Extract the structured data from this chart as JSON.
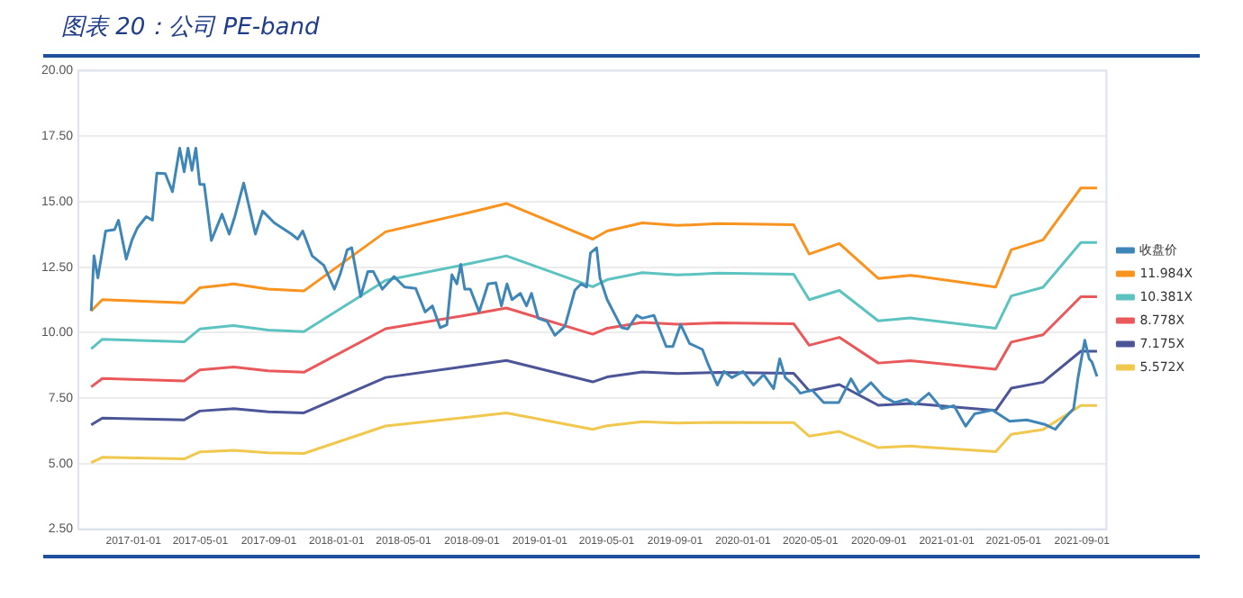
{
  "chart_data": {
    "type": "line",
    "title": "图表 20：公司 PE-band",
    "xlim": [
      "2016-09-24",
      "2021-10-15"
    ],
    "xticks": [
      "2017-01-01",
      "2017-05-01",
      "2017-09-01",
      "2018-01-01",
      "2018-05-01",
      "2018-09-01",
      "2019-01-01",
      "2019-05-01",
      "2019-09-01",
      "2020-01-01",
      "2020-05-01",
      "2020-09-01",
      "2021-01-01",
      "2021-05-01",
      "2021-09-01"
    ],
    "ylim": [
      2.5,
      20
    ],
    "yticks": [
      {
        "value": 2.5,
        "label": "2.50"
      },
      {
        "value": 5,
        "label": "5.00"
      },
      {
        "value": 7.5,
        "label": "7.50"
      },
      {
        "value": 10,
        "label": "10.00"
      },
      {
        "value": 12.5,
        "label": "12.50"
      },
      {
        "value": 15,
        "label": "15.00"
      },
      {
        "value": 17.5,
        "label": "17.50"
      },
      {
        "value": 20,
        "label": "20.00"
      }
    ],
    "grid": "y",
    "legend": "right",
    "marker": "none",
    "line_style": "solid",
    "series": [
      {
        "name": "收盘价",
        "color": "#3f86b8",
        "x": [
          "2016-10-17",
          "2016-10-22",
          "2016-10-29",
          "2016-11-12",
          "2016-11-28",
          "2016-12-05",
          "2016-12-19",
          "2016-12-29",
          "2017-01-08",
          "2017-01-24",
          "2017-02-04",
          "2017-02-12",
          "2017-02-27",
          "2017-03-12",
          "2017-03-25",
          "2017-04-02",
          "2017-04-09",
          "2017-04-16",
          "2017-04-23",
          "2017-04-30",
          "2017-05-08",
          "2017-05-21",
          "2017-06-09",
          "2017-06-22",
          "2017-07-02",
          "2017-07-18",
          "2017-08-08",
          "2017-08-21",
          "2017-09-11",
          "2017-10-12",
          "2017-10-23",
          "2017-11-01",
          "2017-11-18",
          "2017-12-09",
          "2017-12-28",
          "2018-01-07",
          "2018-01-20",
          "2018-01-28",
          "2018-02-13",
          "2018-02-26",
          "2018-03-08",
          "2018-03-24",
          "2018-04-14",
          "2018-05-03",
          "2018-05-23",
          "2018-06-09",
          "2018-06-22",
          "2018-07-06",
          "2018-07-18",
          "2018-07-27",
          "2018-08-05",
          "2018-08-12",
          "2018-08-19",
          "2018-08-29",
          "2018-09-14",
          "2018-09-30",
          "2018-10-14",
          "2018-10-24",
          "2018-11-03",
          "2018-11-12",
          "2018-11-27",
          "2018-12-08",
          "2018-12-17",
          "2018-12-29",
          "2019-01-14",
          "2019-01-28",
          "2019-02-15",
          "2019-03-05",
          "2019-03-16",
          "2019-03-26",
          "2019-04-02",
          "2019-04-13",
          "2019-04-19",
          "2019-05-02",
          "2019-05-28",
          "2019-06-08",
          "2019-06-24",
          "2019-07-04",
          "2019-07-25",
          "2019-08-16",
          "2019-08-28",
          "2019-09-11",
          "2019-09-27",
          "2019-10-20",
          "2019-10-31",
          "2019-11-16",
          "2019-11-28",
          "2019-12-12",
          "2020-01-01",
          "2020-01-20",
          "2020-02-07",
          "2020-02-25",
          "2020-03-07",
          "2020-03-17",
          "2020-04-04",
          "2020-04-13",
          "2020-05-04",
          "2020-05-25",
          "2020-06-21",
          "2020-07-13",
          "2020-07-28",
          "2020-08-18",
          "2020-09-09",
          "2020-09-30",
          "2020-10-21",
          "2020-11-06",
          "2020-11-30",
          "2020-12-23",
          "2021-01-14",
          "2021-02-04",
          "2021-02-20",
          "2021-03-24",
          "2021-04-24",
          "2021-05-25",
          "2021-06-26",
          "2021-07-15",
          "2021-08-01",
          "2021-08-17",
          "2021-08-25",
          "2021-09-06",
          "2021-09-14",
          "2021-09-19",
          "2021-09-28"
        ],
        "values": [
          10.83,
          12.93,
          12.09,
          13.88,
          13.93,
          14.29,
          12.81,
          13.52,
          14.0,
          14.43,
          14.29,
          16.09,
          16.07,
          15.38,
          17.04,
          16.14,
          17.04,
          16.19,
          17.04,
          15.66,
          15.66,
          13.52,
          14.52,
          13.76,
          14.43,
          15.71,
          13.76,
          14.64,
          14.19,
          13.76,
          13.57,
          13.88,
          12.93,
          12.57,
          11.66,
          12.21,
          13.16,
          13.24,
          11.38,
          12.33,
          12.33,
          11.66,
          12.14,
          11.74,
          11.69,
          10.79,
          11.02,
          10.19,
          10.3,
          12.21,
          11.86,
          12.61,
          11.66,
          11.66,
          10.79,
          11.86,
          11.9,
          11.02,
          11.86,
          11.26,
          11.5,
          11.02,
          11.5,
          10.55,
          10.43,
          9.9,
          10.24,
          11.62,
          11.86,
          11.74,
          13.04,
          13.24,
          12.09,
          11.26,
          10.19,
          10.14,
          10.66,
          10.55,
          10.66,
          9.47,
          9.47,
          10.31,
          9.59,
          9.36,
          8.76,
          8.0,
          8.52,
          8.28,
          8.52,
          8.0,
          8.4,
          7.86,
          9.0,
          8.28,
          7.93,
          7.69,
          7.81,
          7.33,
          7.33,
          8.24,
          7.69,
          8.09,
          7.57,
          7.33,
          7.45,
          7.26,
          7.69,
          7.1,
          7.21,
          6.43,
          6.9,
          7.05,
          6.62,
          6.67,
          6.5,
          6.31,
          6.74,
          7.1,
          8.29,
          9.71,
          9.0,
          8.88,
          8.33
        ]
      },
      {
        "name": "11.984X",
        "color": "#f7931e",
        "x": [
          "2016-10-17",
          "2016-11-06",
          "2017-04-02",
          "2017-04-30",
          "2017-06-30",
          "2017-08-31",
          "2017-11-03",
          "2018-03-30",
          "2018-08-29",
          "2018-11-02",
          "2019-04-06",
          "2019-05-02",
          "2019-07-04",
          "2019-09-05",
          "2019-11-17",
          "2020-04-01",
          "2020-04-29",
          "2020-06-22",
          "2020-08-31",
          "2020-10-28",
          "2021-03-30",
          "2021-04-27",
          "2021-06-23",
          "2021-08-30",
          "2021-09-28"
        ],
        "values": [
          10.83,
          11.26,
          11.14,
          11.71,
          11.86,
          11.66,
          11.59,
          13.85,
          14.59,
          14.93,
          13.57,
          13.88,
          14.19,
          14.09,
          14.16,
          14.12,
          13.0,
          13.4,
          12.07,
          12.19,
          11.74,
          13.16,
          13.54,
          15.52,
          15.52
        ]
      },
      {
        "name": "10.381X",
        "color": "#5cc3c0",
        "x": [
          "2016-10-17",
          "2016-11-06",
          "2017-04-02",
          "2017-04-30",
          "2017-06-30",
          "2017-08-31",
          "2017-11-03",
          "2018-03-30",
          "2018-08-29",
          "2018-11-02",
          "2019-04-06",
          "2019-05-02",
          "2019-07-04",
          "2019-09-05",
          "2019-11-17",
          "2020-04-01",
          "2020-04-29",
          "2020-06-22",
          "2020-08-31",
          "2020-10-28",
          "2021-03-30",
          "2021-04-27",
          "2021-06-23",
          "2021-08-30",
          "2021-09-28"
        ],
        "values": [
          9.38,
          9.75,
          9.65,
          10.14,
          10.27,
          10.1,
          10.04,
          12.0,
          12.64,
          12.93,
          11.75,
          12.02,
          12.29,
          12.2,
          12.27,
          12.23,
          11.26,
          11.61,
          10.45,
          10.56,
          10.17,
          11.4,
          11.73,
          13.44,
          13.44
        ]
      },
      {
        "name": "8.778X",
        "color": "#e9595b",
        "x": [
          "2016-10-17",
          "2016-11-06",
          "2017-04-02",
          "2017-04-30",
          "2017-06-30",
          "2017-08-31",
          "2017-11-03",
          "2018-03-30",
          "2018-08-29",
          "2018-11-02",
          "2019-04-06",
          "2019-05-02",
          "2019-07-04",
          "2019-09-05",
          "2019-11-17",
          "2020-04-01",
          "2020-04-29",
          "2020-06-22",
          "2020-08-31",
          "2020-10-28",
          "2021-03-30",
          "2021-04-27",
          "2021-06-23",
          "2021-08-30",
          "2021-09-28"
        ],
        "values": [
          7.93,
          8.25,
          8.16,
          8.58,
          8.69,
          8.54,
          8.49,
          10.15,
          10.69,
          10.94,
          9.94,
          10.17,
          10.39,
          10.32,
          10.37,
          10.34,
          9.52,
          9.82,
          8.84,
          8.93,
          8.6,
          9.64,
          9.92,
          11.37,
          11.37
        ]
      },
      {
        "name": "7.175X",
        "color": "#4b5597",
        "x": [
          "2016-10-17",
          "2016-11-06",
          "2017-04-02",
          "2017-04-30",
          "2017-06-30",
          "2017-08-31",
          "2017-11-03",
          "2018-03-30",
          "2018-08-29",
          "2018-11-02",
          "2019-04-06",
          "2019-05-02",
          "2019-07-04",
          "2019-09-05",
          "2019-11-17",
          "2020-04-01",
          "2020-04-29",
          "2020-06-22",
          "2020-08-31",
          "2020-10-28",
          "2021-03-30",
          "2021-04-27",
          "2021-06-23",
          "2021-08-30",
          "2021-09-28"
        ],
        "values": [
          6.48,
          6.74,
          6.67,
          7.01,
          7.1,
          6.98,
          6.94,
          8.29,
          8.74,
          8.94,
          8.12,
          8.31,
          8.5,
          8.44,
          8.48,
          8.45,
          7.78,
          8.02,
          7.23,
          7.3,
          7.03,
          7.88,
          8.11,
          9.29,
          9.29
        ]
      },
      {
        "name": "5.572X",
        "color": "#f0c84e",
        "x": [
          "2016-10-17",
          "2016-11-06",
          "2017-04-02",
          "2017-04-30",
          "2017-06-30",
          "2017-08-31",
          "2017-11-03",
          "2018-03-30",
          "2018-08-29",
          "2018-11-02",
          "2019-04-06",
          "2019-05-02",
          "2019-07-04",
          "2019-09-05",
          "2019-11-17",
          "2020-04-01",
          "2020-04-29",
          "2020-06-22",
          "2020-08-31",
          "2020-10-28",
          "2021-03-30",
          "2021-04-27",
          "2021-06-23",
          "2021-08-30",
          "2021-09-28"
        ],
        "values": [
          5.04,
          5.24,
          5.18,
          5.45,
          5.51,
          5.42,
          5.39,
          6.44,
          6.78,
          6.94,
          6.31,
          6.45,
          6.6,
          6.55,
          6.58,
          6.57,
          6.05,
          6.23,
          5.61,
          5.67,
          5.46,
          6.12,
          6.3,
          7.22,
          7.22
        ]
      }
    ]
  }
}
